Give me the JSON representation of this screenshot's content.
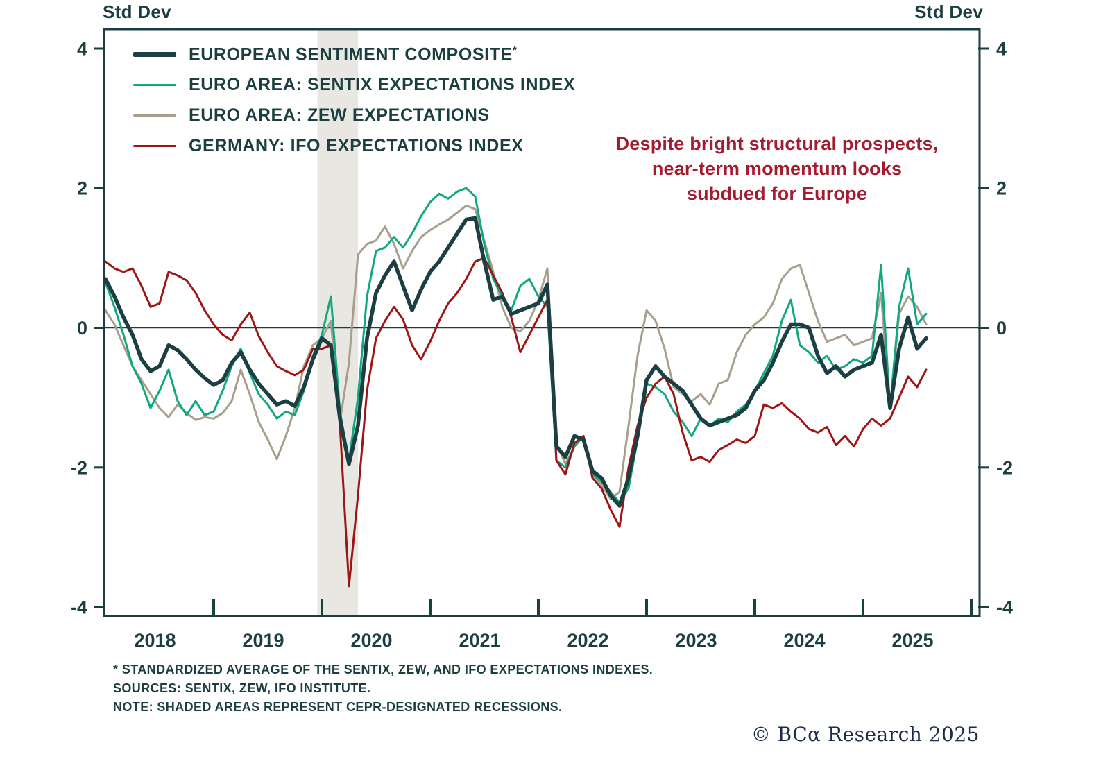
{
  "colors": {
    "background": "#ffffff",
    "axis": "#1b3e40",
    "text": "#1b3e40",
    "annotation_red": "#a51c30",
    "copyright_navy": "#1d2a49",
    "recession_band": "#e8e7e2"
  },
  "page": {
    "copyright": "© BCα Research 2025"
  },
  "footnotes": {
    "line1": "* STANDARDIZED AVERAGE OF THE SENTIX, ZEW, AND IFO EXPECTATIONS INDEXES.",
    "line2": "SOURCES: SENTIX, ZEW, IFO INSTITUTE.",
    "line3": "NOTE: SHADED AREAS REPRESENT CEPR-DESIGNATED RECESSIONS."
  },
  "chart_data": {
    "type": "line",
    "ylabel_left": "Std Dev",
    "ylabel_right": "Std Dev",
    "ylim": [
      -4,
      4
    ],
    "y_ticks": [
      4,
      2,
      0,
      -2,
      -4
    ],
    "x_tick_labels": [
      "2018",
      "2019",
      "2020",
      "2021",
      "2022",
      "2023",
      "2024",
      "2025"
    ],
    "grid": "zero-line-only",
    "legend_position": "top-left-inside",
    "annotation_lines": [
      "Despite bright structural prospects,",
      "near-term momentum looks",
      "subdued for Europe"
    ],
    "recession_bands": [
      {
        "start": "2020-01",
        "end": "2020-05",
        "label": "CEPR-designated recession"
      }
    ],
    "categories": [
      "2018-01",
      "2018-02",
      "2018-03",
      "2018-04",
      "2018-05",
      "2018-06",
      "2018-07",
      "2018-08",
      "2018-09",
      "2018-10",
      "2018-11",
      "2018-12",
      "2019-01",
      "2019-02",
      "2019-03",
      "2019-04",
      "2019-05",
      "2019-06",
      "2019-07",
      "2019-08",
      "2019-09",
      "2019-10",
      "2019-11",
      "2019-12",
      "2020-01",
      "2020-02",
      "2020-03",
      "2020-04",
      "2020-05",
      "2020-06",
      "2020-07",
      "2020-08",
      "2020-09",
      "2020-10",
      "2020-11",
      "2020-12",
      "2021-01",
      "2021-02",
      "2021-03",
      "2021-04",
      "2021-05",
      "2021-06",
      "2021-07",
      "2021-08",
      "2021-09",
      "2021-10",
      "2021-11",
      "2021-12",
      "2022-01",
      "2022-02",
      "2022-03",
      "2022-04",
      "2022-05",
      "2022-06",
      "2022-07",
      "2022-08",
      "2022-09",
      "2022-10",
      "2022-11",
      "2022-12",
      "2023-01",
      "2023-02",
      "2023-03",
      "2023-04",
      "2023-05",
      "2023-06",
      "2023-07",
      "2023-08",
      "2023-09",
      "2023-10",
      "2023-11",
      "2023-12",
      "2024-01",
      "2024-02",
      "2024-03",
      "2024-04",
      "2024-05",
      "2024-06",
      "2024-07",
      "2024-08",
      "2024-09",
      "2024-10",
      "2024-11",
      "2024-12",
      "2025-01",
      "2025-02",
      "2025-03",
      "2025-04",
      "2025-05",
      "2025-06",
      "2025-07",
      "2025-08"
    ],
    "series": [
      {
        "name": "EUROPEAN SENTIMENT COMPOSITE",
        "suffix": "*",
        "color": "#1b3f42",
        "width": 5.5,
        "values": [
          0.7,
          0.45,
          0.15,
          -0.1,
          -0.45,
          -0.62,
          -0.55,
          -0.25,
          -0.32,
          -0.45,
          -0.6,
          -0.72,
          -0.82,
          -0.75,
          -0.5,
          -0.35,
          -0.6,
          -0.8,
          -0.95,
          -1.1,
          -1.05,
          -1.12,
          -0.85,
          -0.45,
          -0.15,
          -0.25,
          -1.3,
          -1.95,
          -1.4,
          -0.15,
          0.5,
          0.75,
          0.95,
          0.6,
          0.25,
          0.55,
          0.8,
          0.95,
          1.15,
          1.35,
          1.55,
          1.57,
          0.95,
          0.4,
          0.45,
          0.2,
          0.25,
          0.3,
          0.35,
          0.62,
          -1.7,
          -1.85,
          -1.55,
          -1.6,
          -2.05,
          -2.15,
          -2.4,
          -2.55,
          -2.15,
          -1.55,
          -0.75,
          -0.55,
          -0.7,
          -0.8,
          -0.9,
          -1.1,
          -1.3,
          -1.4,
          -1.35,
          -1.3,
          -1.25,
          -1.15,
          -0.9,
          -0.75,
          -0.5,
          -0.2,
          0.05,
          0.05,
          0.0,
          -0.4,
          -0.65,
          -0.55,
          -0.7,
          -0.6,
          -0.55,
          -0.5,
          -0.1,
          -1.15,
          -0.3,
          0.15,
          -0.3,
          -0.15
        ]
      },
      {
        "name": "EURO AREA: SENTIX EXPECTATIONS INDEX",
        "color": "#10a87e",
        "width": 3,
        "values": [
          0.65,
          0.3,
          -0.1,
          -0.55,
          -0.8,
          -1.15,
          -0.9,
          -0.6,
          -1.05,
          -1.25,
          -1.05,
          -1.25,
          -1.2,
          -0.9,
          -0.55,
          -0.3,
          -0.65,
          -0.95,
          -1.1,
          -1.3,
          -1.2,
          -1.25,
          -0.9,
          -0.4,
          -0.1,
          0.45,
          -1.2,
          -1.9,
          -1.0,
          0.45,
          1.1,
          1.15,
          1.3,
          1.15,
          1.35,
          1.6,
          1.8,
          1.92,
          1.85,
          1.95,
          2.0,
          1.88,
          1.2,
          0.7,
          0.45,
          0.25,
          0.6,
          0.7,
          0.45,
          0.3,
          -1.9,
          -2.0,
          -1.7,
          -1.55,
          -2.1,
          -2.2,
          -2.35,
          -2.5,
          -2.3,
          -1.6,
          -0.8,
          -0.85,
          -0.95,
          -1.2,
          -1.35,
          -1.55,
          -1.3,
          -1.4,
          -1.3,
          -1.35,
          -1.2,
          -1.1,
          -0.9,
          -0.65,
          -0.4,
          0.1,
          0.4,
          -0.25,
          -0.35,
          -0.5,
          -0.4,
          -0.6,
          -0.55,
          -0.45,
          -0.5,
          -0.4,
          0.9,
          -1.15,
          0.3,
          0.85,
          0.05,
          0.2
        ]
      },
      {
        "name": "EURO AREA: ZEW EXPECTATIONS",
        "color": "#a89e8c",
        "width": 3,
        "values": [
          0.25,
          0.05,
          -0.25,
          -0.55,
          -0.75,
          -0.95,
          -1.15,
          -1.28,
          -1.1,
          -1.22,
          -1.32,
          -1.28,
          -1.3,
          -1.22,
          -1.05,
          -0.6,
          -0.95,
          -1.35,
          -1.6,
          -1.88,
          -1.55,
          -1.15,
          -0.55,
          -0.25,
          -0.15,
          0.1,
          -1.35,
          -0.5,
          1.05,
          1.2,
          1.25,
          1.45,
          1.2,
          0.85,
          1.1,
          1.3,
          1.4,
          1.48,
          1.55,
          1.65,
          1.75,
          1.7,
          1.25,
          0.8,
          0.3,
          0.0,
          -0.05,
          0.1,
          0.4,
          0.85,
          -1.65,
          -1.95,
          -1.7,
          -1.55,
          -2.1,
          -2.25,
          -2.45,
          -2.35,
          -1.4,
          -0.4,
          0.25,
          0.1,
          -0.3,
          -0.85,
          -0.95,
          -1.05,
          -0.95,
          -1.1,
          -0.8,
          -0.75,
          -0.35,
          -0.1,
          0.05,
          0.15,
          0.35,
          0.7,
          0.85,
          0.9,
          0.5,
          0.1,
          -0.2,
          -0.15,
          -0.1,
          -0.25,
          -0.2,
          -0.15,
          0.5,
          -1.15,
          0.2,
          0.45,
          0.3,
          0.05
        ]
      },
      {
        "name": "GERMANY: IFO EXPECTATIONS INDEX",
        "color": "#9e1515",
        "width": 3,
        "values": [
          0.95,
          0.85,
          0.8,
          0.85,
          0.6,
          0.3,
          0.35,
          0.8,
          0.75,
          0.68,
          0.5,
          0.25,
          0.05,
          -0.1,
          -0.18,
          0.05,
          0.22,
          -0.12,
          -0.35,
          -0.55,
          -0.62,
          -0.68,
          -0.6,
          -0.3,
          -0.3,
          -0.25,
          -1.4,
          -3.7,
          -2.4,
          -0.9,
          -0.15,
          0.1,
          0.3,
          0.12,
          -0.25,
          -0.45,
          -0.2,
          0.1,
          0.35,
          0.5,
          0.7,
          0.95,
          1.0,
          0.75,
          0.5,
          0.15,
          -0.35,
          -0.1,
          0.15,
          0.4,
          -1.9,
          -2.1,
          -1.65,
          -1.55,
          -2.15,
          -2.3,
          -2.6,
          -2.85,
          -2.0,
          -1.4,
          -1.0,
          -0.8,
          -0.7,
          -0.95,
          -1.5,
          -1.9,
          -1.85,
          -1.92,
          -1.75,
          -1.68,
          -1.6,
          -1.65,
          -1.55,
          -1.1,
          -1.15,
          -1.08,
          -1.2,
          -1.3,
          -1.45,
          -1.5,
          -1.42,
          -1.68,
          -1.55,
          -1.7,
          -1.45,
          -1.3,
          -1.4,
          -1.3,
          -1.0,
          -0.7,
          -0.85,
          -0.6
        ]
      }
    ]
  }
}
